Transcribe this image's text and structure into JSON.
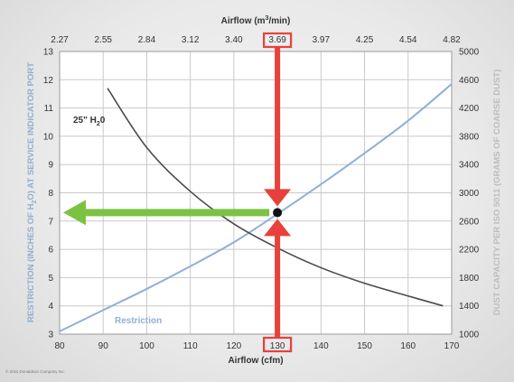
{
  "chart_data": {
    "type": "line",
    "x_bottom": {
      "label": "Airflow (cfm)",
      "ticks": [
        "80",
        "90",
        "100",
        "110",
        "120",
        "130",
        "140",
        "150",
        "160",
        "170"
      ],
      "range": [
        80,
        170
      ]
    },
    "x_top": {
      "label_prefix": "Airflow (m",
      "label_sup": "3",
      "label_suffix": "/min)",
      "ticks": [
        "2.27",
        "2.55",
        "2.84",
        "3.12",
        "3.40",
        "3.69",
        "3.97",
        "4.25",
        "4.54",
        "4.82"
      ]
    },
    "y_left": {
      "label_prefix": "RESTRICTION (INCHES OF H",
      "label_sub": "2",
      "label_suffix": "O) AT SERVICE INDICATOR PORT",
      "ticks": [
        "3",
        "4",
        "5",
        "6",
        "7",
        "8",
        "9",
        "10",
        "11",
        "12",
        "13"
      ],
      "range": [
        3,
        13
      ]
    },
    "y_right": {
      "label": "DUST CAPACITY PER ISO 5011 (GRAMS OF COARSE DUST)",
      "ticks": [
        "1000",
        "1400",
        "1800",
        "2200",
        "2600",
        "3000",
        "3400",
        "3800",
        "4200",
        "4600",
        "5000"
      ],
      "range": [
        1000,
        5000
      ]
    },
    "series": [
      {
        "name": "Restriction",
        "axis": "left",
        "color": "#8fb0d6",
        "x": [
          80,
          90,
          100,
          110,
          120,
          130,
          140,
          150,
          160,
          170
        ],
        "y": [
          3.1,
          3.85,
          4.6,
          5.4,
          6.25,
          7.25,
          8.3,
          9.4,
          10.55,
          11.85
        ]
      },
      {
        "name": "25\" H2O",
        "label_main": "25\" H",
        "label_sub": "2",
        "label_end": "0",
        "axis": "right",
        "color": "#4a4a4a",
        "x": [
          91,
          100,
          110,
          120,
          130,
          140,
          150,
          160,
          168
        ],
        "y": [
          4480,
          3640,
          3020,
          2560,
          2220,
          1940,
          1720,
          1540,
          1400
        ]
      }
    ],
    "operating_point": {
      "x": 130,
      "y_left": 7.3
    },
    "grid": true,
    "colors": {
      "arrow_red": "#e8403a",
      "arrow_green": "#7cc242",
      "highlight_box": "#e8403a"
    }
  },
  "copyright": "© 2011 Donaldson Company Inc."
}
